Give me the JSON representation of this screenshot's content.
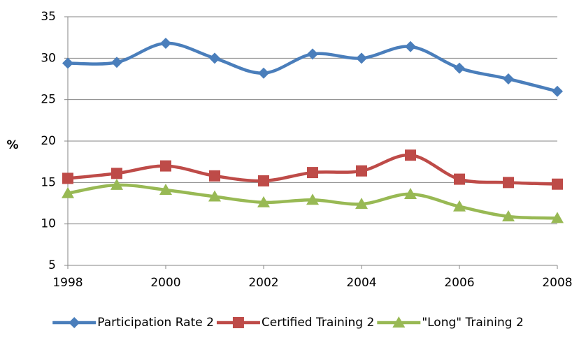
{
  "chart_data": {
    "type": "line",
    "y_label": "%",
    "x": [
      1998,
      1999,
      2000,
      2001,
      2002,
      2003,
      2004,
      2005,
      2006,
      2007,
      2008
    ],
    "series": [
      {
        "name": "Participation Rate 2",
        "color": "#4a7ebb",
        "marker": "diamond",
        "values": [
          29.4,
          29.5,
          31.8,
          30.0,
          28.2,
          30.5,
          30.0,
          31.4,
          28.8,
          27.5,
          26.0
        ]
      },
      {
        "name": "Certified Training 2",
        "color": "#be4b48",
        "marker": "square",
        "values": [
          15.5,
          16.1,
          17.0,
          15.8,
          15.2,
          16.2,
          16.4,
          18.3,
          15.4,
          15.0,
          14.8
        ]
      },
      {
        "name": "\"Long\" Training 2",
        "color": "#98b954",
        "marker": "triangle",
        "values": [
          13.7,
          14.7,
          14.1,
          13.3,
          12.6,
          12.9,
          12.4,
          13.6,
          12.1,
          10.9,
          10.7
        ]
      }
    ],
    "xlim": [
      1998,
      2008
    ],
    "xticks": [
      1998,
      2000,
      2002,
      2004,
      2006,
      2008
    ],
    "ylim": [
      5,
      35
    ],
    "yticks": [
      5,
      10,
      15,
      20,
      25,
      30,
      35
    ],
    "grid": true,
    "smooth": true,
    "legend": "bottom"
  }
}
